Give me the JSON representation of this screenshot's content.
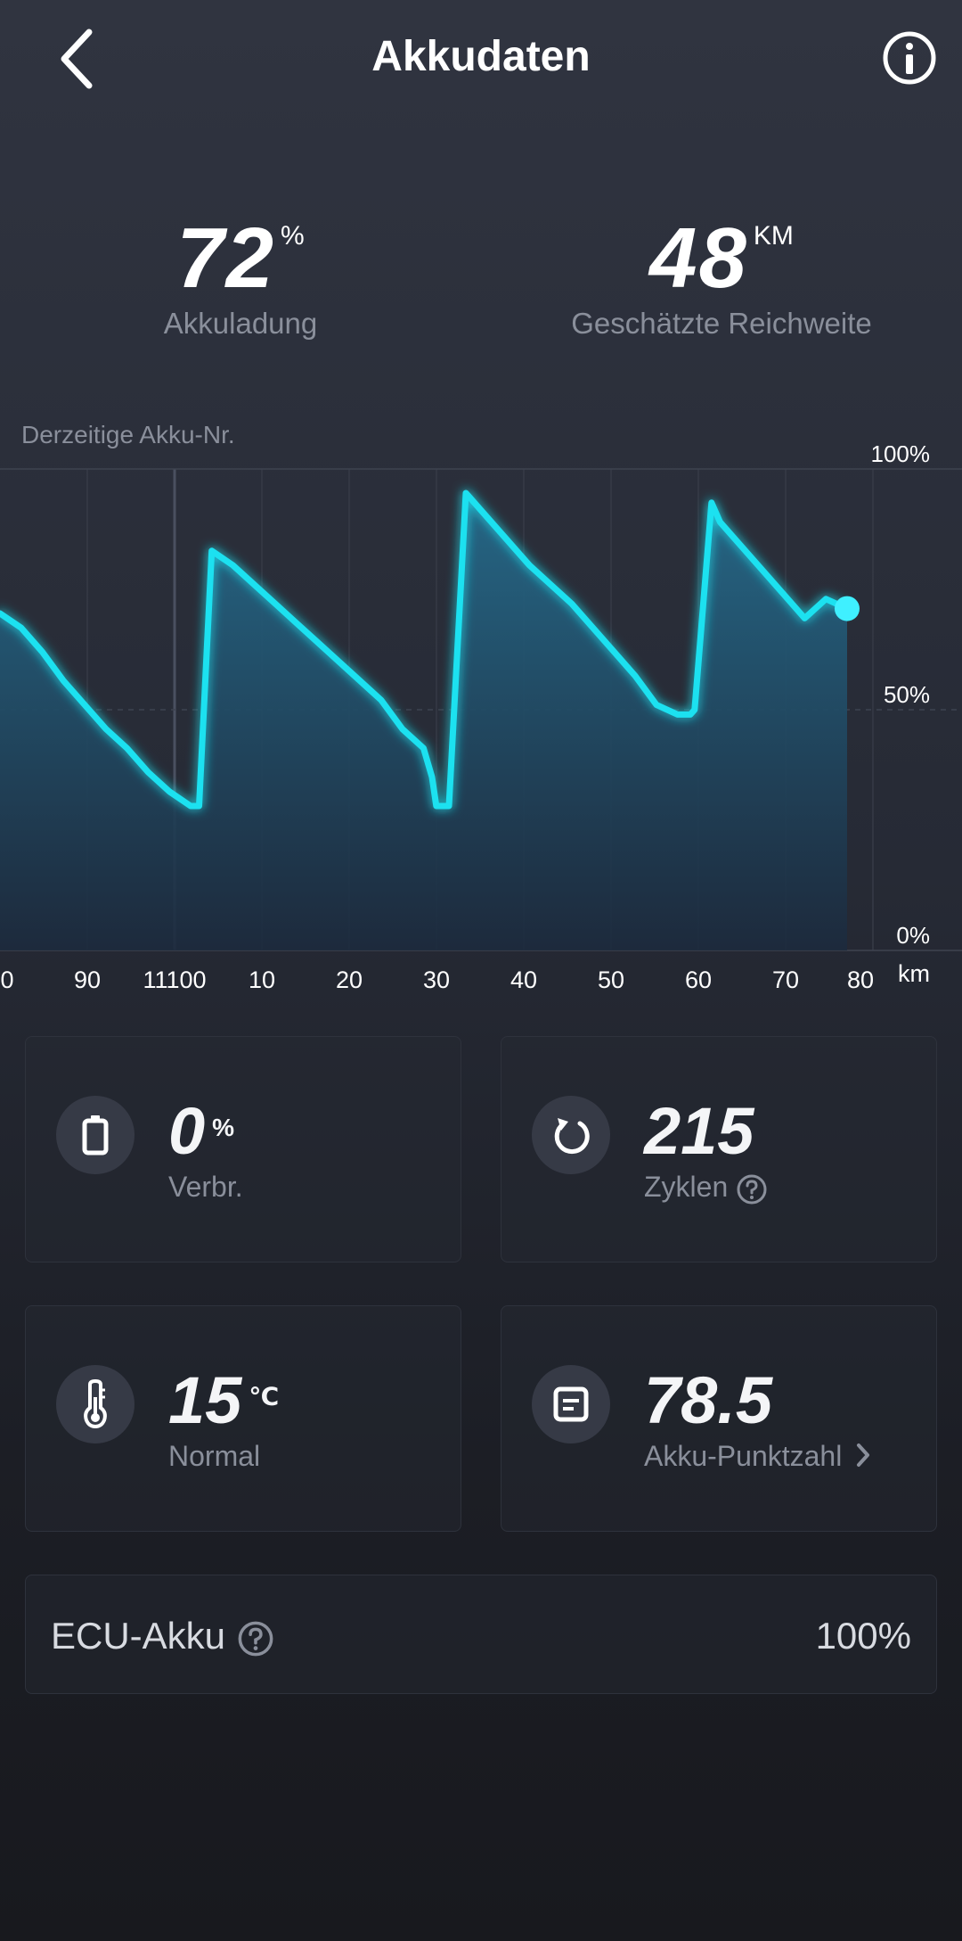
{
  "header": {
    "title": "Akkudaten"
  },
  "summary": {
    "charge_value": "72",
    "charge_unit": "%",
    "charge_label": "Akkuladung",
    "range_value": "48",
    "range_unit": "KM",
    "range_label": "Geschätzte Reichweite"
  },
  "chart_caption": "Derzeitige Akku-Nr.",
  "chart_data": {
    "type": "area",
    "x_labels": [
      "0",
      "90",
      "11100",
      "10",
      "20",
      "30",
      "40",
      "50",
      "60",
      "70",
      "80"
    ],
    "x_unit": "km",
    "y_ticks": [
      "100%",
      "50%",
      "0%"
    ],
    "ylim": [
      0,
      100
    ],
    "series": [
      {
        "x": [
          0,
          0.5,
          1.0,
          1.5,
          2.0,
          2.5,
          3.0,
          3.5,
          4.0,
          4.5,
          4.7,
          5.0,
          5.5,
          6.0,
          6.5,
          7.0,
          7.5,
          8.0,
          8.5,
          9.0,
          9.5,
          10.0,
          10.2,
          10.3,
          10.6,
          11.0,
          11.5,
          12.0,
          12.5,
          13.0,
          13.5,
          14.0,
          14.5,
          15.0,
          15.5,
          16.0,
          16.3,
          16.4,
          16.8,
          17.0,
          17.5,
          18.0,
          18.5,
          19.0,
          19.5,
          20.0
        ],
        "y": [
          70,
          67,
          62,
          56,
          51,
          46,
          42,
          37,
          33,
          30,
          30,
          83,
          80,
          76,
          72,
          68,
          64,
          60,
          56,
          52,
          46,
          42,
          36,
          30,
          30,
          95,
          90,
          85,
          80,
          76,
          72,
          67,
          62,
          57,
          51,
          49,
          49,
          50,
          93,
          89,
          84,
          79,
          74,
          69,
          73,
          71
        ],
        "indices_note": ""
      }
    ]
  },
  "cards": {
    "consumption": {
      "value": "0",
      "unit": "%",
      "label": "Verbr.",
      "icon": "battery-icon"
    },
    "cycles": {
      "value": "215",
      "label": "Zyklen",
      "icon": "refresh-icon"
    },
    "temperature": {
      "value": "15",
      "unit": "℃",
      "label": "Normal",
      "icon": "thermometer-icon"
    },
    "score": {
      "value": "78.5",
      "label": "Akku-Punktzahl",
      "icon": "document-icon"
    }
  },
  "ecu": {
    "label": "ECU-Akku",
    "value": "100%"
  },
  "colors": {
    "line": "#1fe1f0",
    "fill_top": "#256a8a",
    "fill_bottom": "#1c2a3d",
    "background": "#262a35"
  }
}
